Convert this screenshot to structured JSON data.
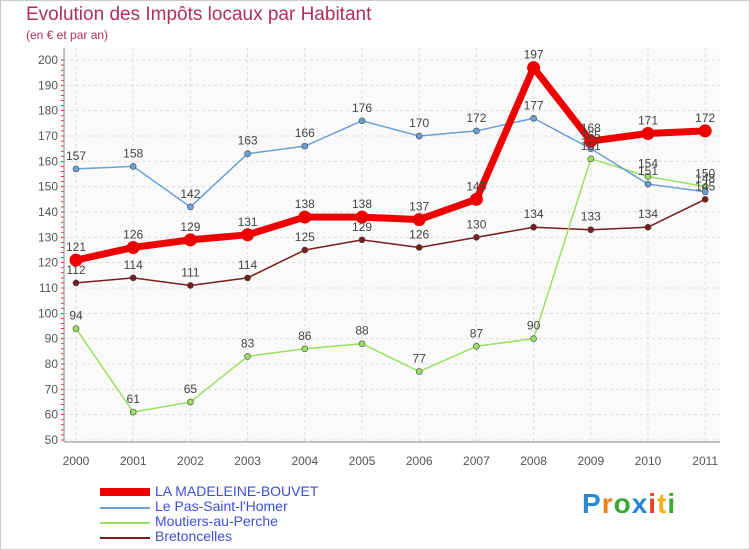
{
  "title": "Evolution des Impôts locaux par Habitant",
  "subtitle": "(en € et par an)",
  "logo": {
    "text": [
      "P",
      "r",
      "o",
      "x",
      "i",
      "t",
      "i"
    ],
    "colors": [
      "#2a86d6",
      "#f0821e",
      "#3aa935",
      "#2a86d6",
      "#e8431e",
      "#f0b51e",
      "#3aa935"
    ]
  },
  "chart_data": {
    "type": "line",
    "categories": [
      "2000",
      "2001",
      "2002",
      "2003",
      "2004",
      "2005",
      "2006",
      "2007",
      "2008",
      "2009",
      "2010",
      "2011"
    ],
    "ylim": [
      50,
      200
    ],
    "yticks": [
      50,
      60,
      70,
      80,
      90,
      100,
      110,
      120,
      130,
      140,
      150,
      160,
      170,
      180,
      190,
      200
    ],
    "grid": true,
    "series": [
      {
        "name": "Bretoncelles",
        "color": "#7a1c1c",
        "values": [
          112,
          114,
          111,
          114,
          125,
          129,
          126,
          130,
          134,
          133,
          134,
          145
        ],
        "labels": [
          "112",
          "114",
          "111",
          "114",
          "125",
          "129",
          "126",
          "130",
          "134",
          "133",
          "134",
          "145"
        ]
      },
      {
        "name": "Moutiers-au-Perche",
        "color": "#9be060",
        "values": [
          94,
          61,
          65,
          83,
          86,
          88,
          77,
          87,
          90,
          161,
          154,
          150
        ],
        "labels": [
          "94",
          "61",
          "65",
          "83",
          "86",
          "88",
          "77",
          "87",
          "90",
          "161",
          "154",
          "150"
        ]
      },
      {
        "name": "Le Pas-Saint-l'Homer",
        "color": "#6aa0d8",
        "values": [
          157,
          158,
          142,
          163,
          166,
          176,
          170,
          172,
          177,
          165,
          151,
          148
        ],
        "labels": [
          "157",
          "158",
          "142",
          "163",
          "166",
          "176",
          "170",
          "172",
          "177",
          "165",
          "151",
          "148"
        ]
      },
      {
        "name": "LA MADELEINE-BOUVET",
        "color": "#ee0000",
        "values": [
          121,
          126,
          129,
          131,
          138,
          138,
          137,
          145,
          197,
          168,
          171,
          172
        ],
        "labels": [
          "121",
          "126",
          "129",
          "131",
          "138",
          "138",
          "137",
          "145",
          "197",
          "168",
          "171",
          "172"
        ]
      }
    ],
    "legend": [
      {
        "name": "LA MADELEINE-BOUVET",
        "color": "#ee0000",
        "bold": true
      },
      {
        "name": "Le Pas-Saint-l'Homer",
        "color": "#6aa0d8",
        "bold": false
      },
      {
        "name": "Moutiers-au-Perche",
        "color": "#9be060",
        "bold": false
      },
      {
        "name": "Bretoncelles",
        "color": "#7a1c1c",
        "bold": false
      }
    ]
  }
}
